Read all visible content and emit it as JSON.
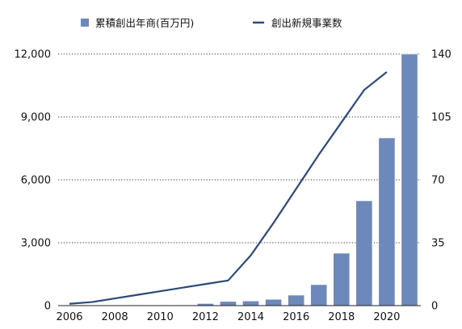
{
  "chart_data": {
    "type": "bar",
    "categories": [
      "2006",
      "2007",
      "2008",
      "2009",
      "2010",
      "2011",
      "2012",
      "2013",
      "2014",
      "2015",
      "2016",
      "2017",
      "2018",
      "2019",
      "2020",
      "2021"
    ],
    "series": [
      {
        "name": "累積創出年商(百万円)",
        "type": "bar",
        "axis": "left",
        "color": "#6d88bb",
        "values": [
          0,
          0,
          0,
          0,
          0,
          0,
          100,
          200,
          220,
          300,
          500,
          1000,
          2500,
          5000,
          8000,
          12000
        ]
      },
      {
        "name": "創出新規事業数",
        "type": "line",
        "axis": "right",
        "color": "#2b4a7a",
        "values": [
          1,
          2,
          4,
          6,
          8,
          10,
          12,
          14,
          28,
          46,
          65,
          84,
          102,
          120,
          130,
          null
        ]
      }
    ],
    "y_left": {
      "ylim": [
        0,
        12000
      ],
      "ticks": [
        "0",
        "3,000",
        "6,000",
        "9,000",
        "12,000"
      ]
    },
    "y_right": {
      "ylim": [
        0,
        140
      ],
      "ticks": [
        "0",
        "35",
        "70",
        "105",
        "140"
      ]
    },
    "x_ticks": [
      "2006",
      "2008",
      "2010",
      "2012",
      "2014",
      "2016",
      "2018",
      "2020"
    ],
    "grid": "horizontal dotted",
    "legend_position": "top"
  }
}
